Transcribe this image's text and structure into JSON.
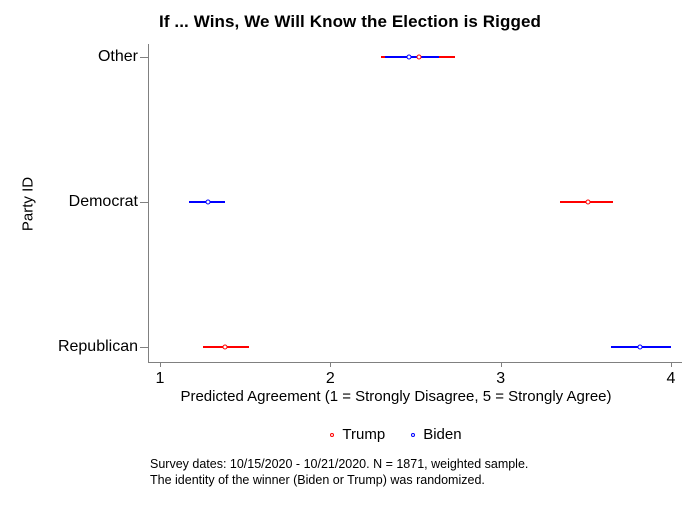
{
  "title": "If ... Wins, We Will Know the Election is Rigged",
  "chart_data": {
    "type": "scatter",
    "subtype": "horizontal-dot-plot-with-95ci",
    "title": "If ... Wins, We Will Know the Election is Rigged",
    "xlabel": "Predicted Agreement (1 = Strongly Disagree, 5 = Strongly Agree)",
    "ylabel": "Party ID",
    "categories": [
      "Other",
      "Democrat",
      "Republican"
    ],
    "x_ticks": [
      1,
      2,
      3,
      4
    ],
    "x_tick_labels": [
      "1",
      "2",
      "3",
      "4"
    ],
    "xlim": [
      0.94,
      4.07
    ],
    "grid": false,
    "legend_position": "bottom-center",
    "series": [
      {
        "name": "Trump",
        "color": "#ff0000",
        "marker": "open-circle",
        "points": [
          {
            "category": "Other",
            "value": 2.52,
            "ci_low": 2.3,
            "ci_high": 2.73
          },
          {
            "category": "Democrat",
            "value": 3.51,
            "ci_low": 3.35,
            "ci_high": 3.66
          },
          {
            "category": "Republican",
            "value": 1.38,
            "ci_low": 1.25,
            "ci_high": 1.52
          }
        ]
      },
      {
        "name": "Biden",
        "color": "#0000ff",
        "marker": "open-circle",
        "points": [
          {
            "category": "Other",
            "value": 2.46,
            "ci_low": 2.32,
            "ci_high": 2.64
          },
          {
            "category": "Democrat",
            "value": 1.28,
            "ci_low": 1.17,
            "ci_high": 1.38
          },
          {
            "category": "Republican",
            "value": 3.82,
            "ci_low": 3.65,
            "ci_high": 4.0
          }
        ]
      }
    ]
  },
  "notes": [
    "Survey dates: 10/15/2020 - 10/21/2020. N = 1871, weighted sample.",
    "The identity of the winner (Biden or Trump) was randomized."
  ],
  "colors": {
    "trump": "#ff0000",
    "biden": "#0000ff",
    "axis": "#808080",
    "text": "#000000",
    "background": "#ffffff"
  }
}
